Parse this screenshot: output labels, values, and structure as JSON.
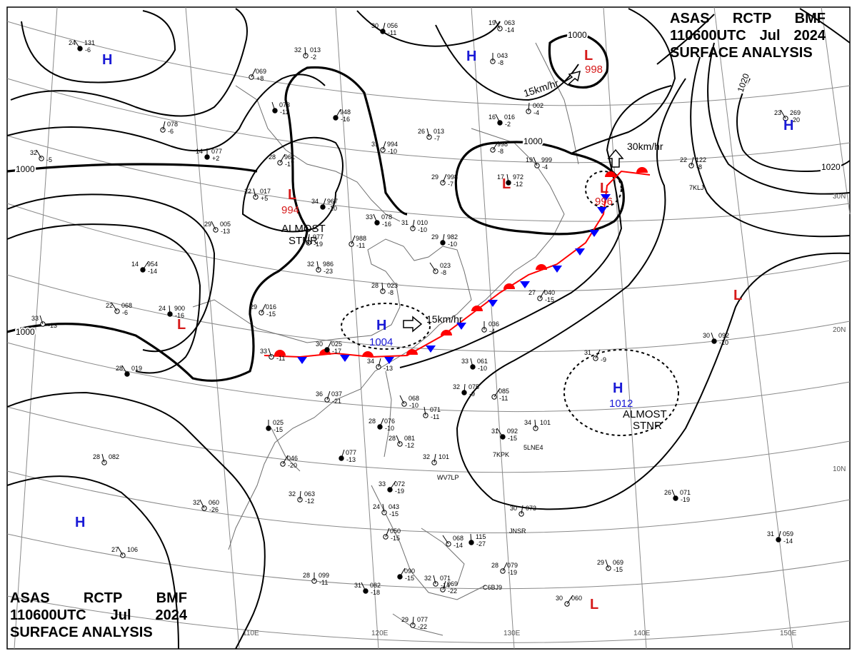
{
  "header": {
    "line1": [
      "ASAS",
      "RCTP",
      "BMF"
    ],
    "line2": [
      "110600UTC",
      "Jul",
      "2024"
    ],
    "line3": "SURFACE ANALYSIS"
  },
  "lat_labels": [
    "30N",
    "20N",
    "10N"
  ],
  "lon_labels": [
    "110E",
    "120E",
    "130E",
    "140E",
    "150E"
  ],
  "isobar_labels": [
    "1000",
    "1000",
    "1000",
    "1000",
    "1020",
    "1020"
  ],
  "pressure_centers": [
    {
      "type": "H",
      "value": "",
      "color": "#1a1ad6"
    },
    {
      "type": "H",
      "value": "",
      "color": "#1a1ad6"
    },
    {
      "type": "L",
      "value": "998",
      "color": "#d61a1a"
    },
    {
      "type": "H",
      "value": "",
      "color": "#1a1ad6"
    },
    {
      "type": "L",
      "value": "994",
      "color": "#d61a1a"
    },
    {
      "type": "L",
      "value": "",
      "color": "#d61a1a"
    },
    {
      "type": "L",
      "value": "996",
      "color": "#d61a1a"
    },
    {
      "type": "L",
      "value": "",
      "color": "#d61a1a"
    },
    {
      "type": "H",
      "value": "1004",
      "color": "#1a1ad6"
    },
    {
      "type": "H",
      "value": "1012",
      "color": "#1a1ad6"
    },
    {
      "type": "H",
      "value": "",
      "color": "#1a1ad6"
    },
    {
      "type": "L",
      "value": "",
      "color": "#d61a1a"
    },
    {
      "type": "L",
      "value": "",
      "color": "#d61a1a"
    }
  ],
  "annotations": {
    "motion_1": "15km/hr",
    "motion_2": "30km/hr",
    "motion_3": "15km/hr",
    "almost_stnr_1": [
      "ALMOST",
      "STNR"
    ],
    "almost_stnr_2": [
      "ALMOST",
      "STNR"
    ]
  },
  "ship_callsigns": [
    "7KPK",
    "5LNE4",
    "WV7LP",
    "JNSR",
    "C6BJ9",
    "7KLJ"
  ],
  "station_plots": [
    {
      "t": "24",
      "p": "131",
      "d": "-6"
    },
    {
      "t": "32",
      "p": "013",
      "d": "-2"
    },
    {
      "t": "",
      "p": "069",
      "d": "+8"
    },
    {
      "t": "",
      "p": "073",
      "d": "-11"
    },
    {
      "t": "",
      "p": "078",
      "d": "-6"
    },
    {
      "t": "32",
      "p": "",
      "d": "-5"
    },
    {
      "t": "14",
      "p": "077",
      "d": "+2"
    },
    {
      "t": "28",
      "p": "961",
      "d": "-17"
    },
    {
      "t": "22",
      "p": "017",
      "d": "+5"
    },
    {
      "t": "34",
      "p": "967",
      "d": "-10"
    },
    {
      "t": "29",
      "p": "005",
      "d": "-13"
    },
    {
      "t": "",
      "p": "977",
      "d": "-19"
    },
    {
      "t": "14",
      "p": "954",
      "d": "-14"
    },
    {
      "t": "32",
      "p": "986",
      "d": "-23"
    },
    {
      "t": "",
      "p": "988",
      "d": "-11"
    },
    {
      "t": "33",
      "p": "078",
      "d": "-16"
    },
    {
      "t": "31",
      "p": "010",
      "d": "-10"
    },
    {
      "t": "22",
      "p": "068",
      "d": "-6"
    },
    {
      "t": "24",
      "p": "900",
      "d": "-16"
    },
    {
      "t": "29",
      "p": "016",
      "d": "-15"
    },
    {
      "t": "33",
      "p": "",
      "d": "-13"
    },
    {
      "t": "30",
      "p": "056",
      "d": "-11"
    },
    {
      "t": "19",
      "p": "063",
      "d": "-14"
    },
    {
      "t": "",
      "p": "043",
      "d": "-8"
    },
    {
      "t": "",
      "p": "948",
      "d": "-16"
    },
    {
      "t": "26",
      "p": "013",
      "d": "-7"
    },
    {
      "t": "31",
      "p": "994",
      "d": "-10"
    },
    {
      "t": "16",
      "p": "016",
      "d": "-2"
    },
    {
      "t": "",
      "p": "002",
      "d": "-4"
    },
    {
      "t": "",
      "p": "998",
      "d": "-8"
    },
    {
      "t": "17",
      "p": "972",
      "d": "-12"
    },
    {
      "t": "29",
      "p": "998",
      "d": "-7"
    },
    {
      "t": "19",
      "p": "999",
      "d": "-4"
    },
    {
      "t": "29",
      "p": "982",
      "d": "-10"
    },
    {
      "t": "",
      "p": "023",
      "d": "-8"
    },
    {
      "t": "28",
      "p": "023",
      "d": "-8"
    },
    {
      "t": "30",
      "p": "025",
      "d": "-17"
    },
    {
      "t": "33",
      "p": "",
      "d": "-11"
    },
    {
      "t": "34",
      "p": "",
      "d": "-13"
    },
    {
      "t": "28",
      "p": "019",
      "d": ""
    },
    {
      "t": "",
      "p": "036",
      "d": "-4"
    },
    {
      "t": "27",
      "p": "040",
      "d": "-15"
    },
    {
      "t": "33",
      "p": "061",
      "d": "-10"
    },
    {
      "t": "36",
      "p": "037",
      "d": "-21"
    },
    {
      "t": "",
      "p": "068",
      "d": "-10"
    },
    {
      "t": "32",
      "p": "075",
      "d": "-9"
    },
    {
      "t": "",
      "p": "085",
      "d": "-11"
    },
    {
      "t": "",
      "p": "071",
      "d": "-11"
    },
    {
      "t": "28",
      "p": "076",
      "d": "-10"
    },
    {
      "t": "28",
      "p": "081",
      "d": "-12"
    },
    {
      "t": "32",
      "p": "101",
      "d": ""
    },
    {
      "t": "31",
      "p": "092",
      "d": "-15"
    },
    {
      "t": "34",
      "p": "101",
      "d": ""
    },
    {
      "t": "31",
      "p": "",
      "d": "-9"
    },
    {
      "t": "30",
      "p": "092",
      "d": "-10"
    },
    {
      "t": "22",
      "p": "122",
      "d": "-8"
    },
    {
      "t": "23",
      "p": "269",
      "d": "-20"
    },
    {
      "t": "",
      "p": "025",
      "d": "-15"
    },
    {
      "t": "",
      "p": "046",
      "d": "-20"
    },
    {
      "t": "28",
      "p": "082",
      "d": ""
    },
    {
      "t": "",
      "p": "077",
      "d": "-13"
    },
    {
      "t": "32",
      "p": "060",
      "d": "-26"
    },
    {
      "t": "32",
      "p": "063",
      "d": "-12"
    },
    {
      "t": "33",
      "p": "072",
      "d": "-19"
    },
    {
      "t": "24",
      "p": "043",
      "d": "-15"
    },
    {
      "t": "",
      "p": "050",
      "d": "-15"
    },
    {
      "t": "26",
      "p": "071",
      "d": "-19"
    },
    {
      "t": "30",
      "p": "073",
      "d": ""
    },
    {
      "t": "",
      "p": "068",
      "d": "-14"
    },
    {
      "t": "",
      "p": "115",
      "d": "-27"
    },
    {
      "t": "28",
      "p": "079",
      "d": "-19"
    },
    {
      "t": "29",
      "p": "069",
      "d": "-15"
    },
    {
      "t": "31",
      "p": "059",
      "d": "-14"
    },
    {
      "t": "27",
      "p": "106",
      "d": ""
    },
    {
      "t": "28",
      "p": "099",
      "d": "-11"
    },
    {
      "t": "",
      "p": "090",
      "d": "-15"
    },
    {
      "t": "32",
      "p": "071",
      "d": "-14"
    },
    {
      "t": "",
      "p": "069",
      "d": "-22"
    },
    {
      "t": "31",
      "p": "082",
      "d": "-18"
    },
    {
      "t": "29",
      "p": "077",
      "d": "-22"
    },
    {
      "t": "30",
      "p": "060",
      "d": ""
    }
  ],
  "colors": {
    "high": "#1a1ad6",
    "low": "#d61a1a",
    "warm_front": "#ff0000",
    "cold_front": "#0000ff",
    "isobar": "#000000",
    "grid": "#8a8a8a"
  }
}
